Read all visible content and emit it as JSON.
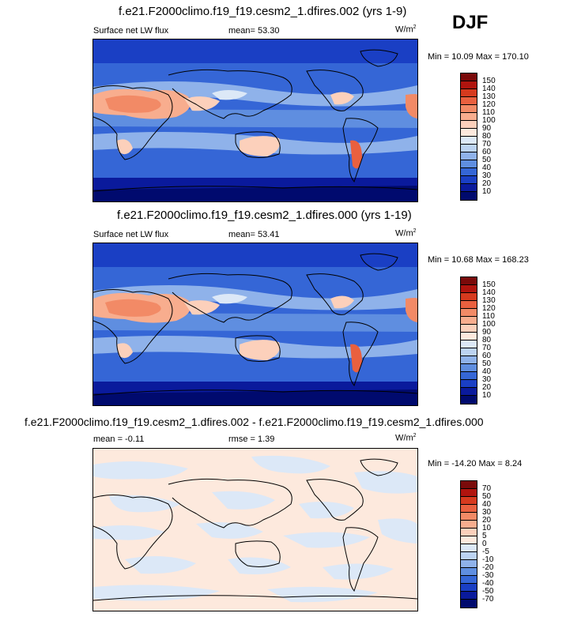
{
  "season": "DJF",
  "panels": [
    {
      "title": "f.e21.F2000climo.f19_f19.cesm2_1.dfires.002 (yrs 1-9)",
      "left_label": "Surface net LW flux",
      "center_label": "mean=  53.30",
      "units": "W/m",
      "units_sup": "2",
      "minmax": "Min =  10.09 Max = 170.10",
      "levels": [
        "150",
        "140",
        "130",
        "120",
        "110",
        "100",
        "90",
        "80",
        "70",
        "60",
        "50",
        "40",
        "30",
        "20",
        "10"
      ]
    },
    {
      "title": "f.e21.F2000climo.f19_f19.cesm2_1.dfires.000 (yrs 1-19)",
      "left_label": "Surface net LW flux",
      "center_label": "mean=  53.41",
      "units": "W/m",
      "units_sup": "2",
      "minmax": "Min =  10.68 Max = 168.23",
      "levels": [
        "150",
        "140",
        "130",
        "120",
        "110",
        "100",
        "90",
        "80",
        "70",
        "60",
        "50",
        "40",
        "30",
        "20",
        "10"
      ]
    },
    {
      "title": "f.e21.F2000climo.f19_f19.cesm2_1.dfires.002 - f.e21.F2000climo.f19_f19.cesm2_1.dfires.000",
      "left_label": "mean =  -0.11",
      "center_label": "rmse =   1.39",
      "units": "W/m",
      "units_sup": "2",
      "minmax": "Min = -14.20 Max =   8.24",
      "levels": [
        "70",
        "50",
        "40",
        "30",
        "20",
        "10",
        "5",
        "0",
        "-5",
        "-10",
        "-20",
        "-30",
        "-40",
        "-50",
        "-70"
      ]
    }
  ],
  "colors": {
    "abs_scale": [
      "#7a0a0a",
      "#b0140e",
      "#d63a1e",
      "#e9603f",
      "#f28a66",
      "#f8ad8e",
      "#fcd0bb",
      "#fde9dd",
      "#dce8f7",
      "#bcd3f2",
      "#8fb2ea",
      "#5f8ee0",
      "#3566d6",
      "#1a3fc4",
      "#0a1a9c",
      "#000a6e"
    ],
    "diff_scale": [
      "#7a0a0a",
      "#b0140e",
      "#d63a1e",
      "#e9603f",
      "#f28a66",
      "#f8ad8e",
      "#fcd0bb",
      "#fde9dd",
      "#dce8f7",
      "#bcd3f2",
      "#8fb2ea",
      "#5f8ee0",
      "#3566d6",
      "#1a3fc4",
      "#0a1a9c",
      "#000a6e"
    ]
  }
}
